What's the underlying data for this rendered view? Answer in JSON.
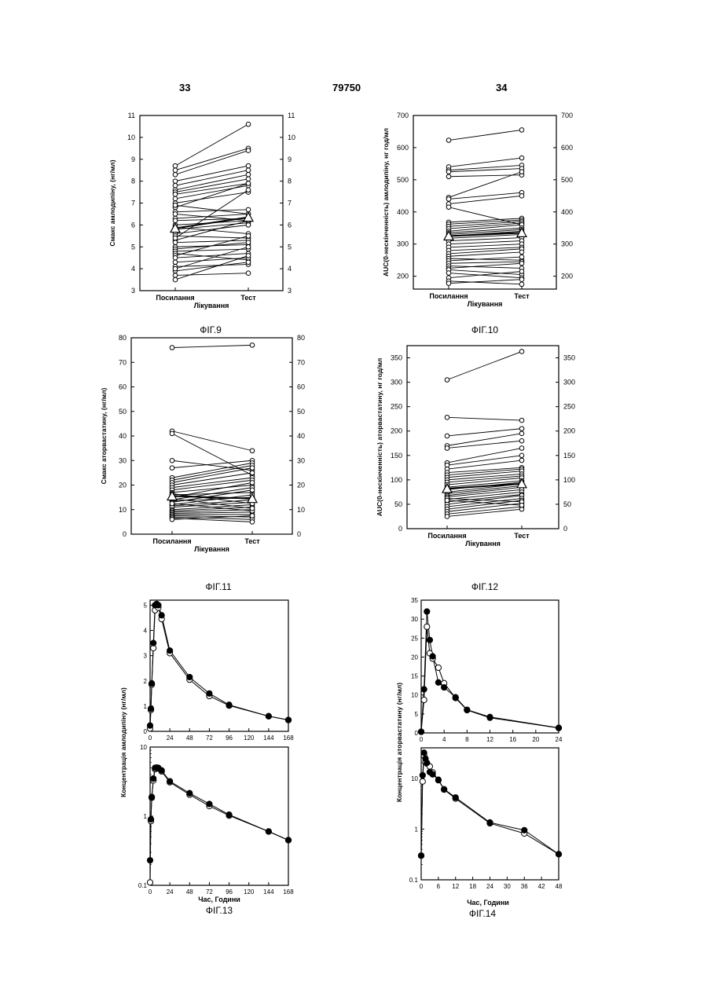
{
  "header": {
    "page_left": "33",
    "doc_number": "79750",
    "page_right": "34"
  },
  "figures": {
    "fig9": {
      "caption": "ФІГ.9",
      "chart_data": {
        "type": "line",
        "ylabel": "Смакс амлодипіну, (нг/мл)",
        "xlabel": "Лікування",
        "categories": [
          "Посилання",
          "Тест"
        ],
        "ylim": [
          3,
          11
        ],
        "yticks": [
          3,
          4,
          5,
          6,
          7,
          8,
          9,
          10,
          11
        ],
        "mean": [
          5.85,
          6.35
        ],
        "pairs": [
          [
            8.7,
            10.6
          ],
          [
            8.5,
            9.5
          ],
          [
            8.3,
            9.4
          ],
          [
            8.0,
            8.7
          ],
          [
            7.8,
            8.5
          ],
          [
            7.6,
            8.3
          ],
          [
            7.5,
            8.1
          ],
          [
            7.4,
            7.9
          ],
          [
            7.2,
            7.8
          ],
          [
            7.0,
            7.5
          ],
          [
            6.8,
            7.9
          ],
          [
            6.6,
            6.7
          ],
          [
            6.5,
            6.2
          ],
          [
            6.3,
            6.5
          ],
          [
            6.2,
            6.3
          ],
          [
            6.0,
            6.2
          ],
          [
            5.9,
            5.6
          ],
          [
            5.8,
            6.1
          ],
          [
            5.6,
            6.0
          ],
          [
            5.5,
            5.4
          ],
          [
            5.3,
            6.2
          ],
          [
            5.2,
            5.3
          ],
          [
            5.0,
            5.1
          ],
          [
            4.9,
            5.2
          ],
          [
            4.8,
            4.9
          ],
          [
            4.7,
            4.4
          ],
          [
            4.6,
            5.5
          ],
          [
            4.5,
            4.7
          ],
          [
            4.3,
            4.5
          ],
          [
            4.1,
            4.2
          ],
          [
            3.9,
            4.3
          ],
          [
            3.7,
            3.8
          ],
          [
            3.5,
            4.6
          ],
          [
            6.9,
            6.5
          ],
          [
            5.4,
            7.6
          ],
          [
            4.0,
            5.0
          ]
        ]
      }
    },
    "fig10": {
      "caption": "ФІГ.10",
      "chart_data": {
        "type": "line",
        "ylabel": "AUC(0-нескінченність) амлодипіну, нг год/мл",
        "xlabel": "Лікування",
        "categories": [
          "Посилання",
          "Тест"
        ],
        "ylim": [
          160,
          700
        ],
        "yticks": [
          200,
          300,
          400,
          500,
          600,
          700
        ],
        "mean": [
          325,
          335
        ],
        "pairs": [
          [
            623,
            655
          ],
          [
            540,
            568
          ],
          [
            530,
            545
          ],
          [
            525,
            535
          ],
          [
            510,
            515
          ],
          [
            445,
            525
          ],
          [
            440,
            460
          ],
          [
            425,
            450
          ],
          [
            415,
            360
          ],
          [
            368,
            380
          ],
          [
            362,
            375
          ],
          [
            355,
            370
          ],
          [
            348,
            365
          ],
          [
            340,
            360
          ],
          [
            335,
            350
          ],
          [
            330,
            345
          ],
          [
            325,
            340
          ],
          [
            318,
            330
          ],
          [
            310,
            320
          ],
          [
            300,
            310
          ],
          [
            290,
            300
          ],
          [
            280,
            290
          ],
          [
            270,
            285
          ],
          [
            262,
            275
          ],
          [
            255,
            250
          ],
          [
            248,
            260
          ],
          [
            240,
            245
          ],
          [
            232,
            225
          ],
          [
            225,
            240
          ],
          [
            220,
            205
          ],
          [
            210,
            195
          ],
          [
            195,
            215
          ],
          [
            185,
            175
          ],
          [
            178,
            190
          ]
        ]
      }
    },
    "fig11": {
      "caption": "ФІГ.11",
      "chart_data": {
        "type": "line",
        "ylabel": "Смакс аторвастатину, (нг/мл)",
        "xlabel": "Лікування",
        "categories": [
          "Посилання",
          "Тест"
        ],
        "ylim": [
          0,
          80
        ],
        "yticks": [
          0,
          10,
          20,
          30,
          40,
          50,
          60,
          70,
          80
        ],
        "mean": [
          15.5,
          14.5
        ],
        "pairs": [
          [
            76,
            77
          ],
          [
            42,
            34
          ],
          [
            41,
            24
          ],
          [
            30,
            26
          ],
          [
            27,
            30
          ],
          [
            23,
            29
          ],
          [
            22,
            28
          ],
          [
            21,
            27
          ],
          [
            20,
            25
          ],
          [
            19,
            23
          ],
          [
            18,
            22
          ],
          [
            17,
            20
          ],
          [
            16,
            17
          ],
          [
            15,
            21
          ],
          [
            14,
            19
          ],
          [
            13.5,
            15
          ],
          [
            13,
            18
          ],
          [
            12,
            16
          ],
          [
            11.5,
            14
          ],
          [
            11,
            13
          ],
          [
            10,
            12
          ],
          [
            9.5,
            11
          ],
          [
            9,
            10
          ],
          [
            8.5,
            9
          ],
          [
            8,
            8
          ],
          [
            7.5,
            7
          ],
          [
            7,
            6
          ],
          [
            6.5,
            5
          ],
          [
            6,
            7.5
          ],
          [
            12.5,
            9.5
          ],
          [
            14.5,
            10.5
          ],
          [
            16.5,
            12.5
          ]
        ]
      }
    },
    "fig12": {
      "caption": "ФІГ.12",
      "chart_data": {
        "type": "line",
        "ylabel": "AUC(0-нескінченність) аторвастатину, нг год/мл",
        "xlabel": "Лікування",
        "categories": [
          "Посилання",
          "Тест"
        ],
        "ylim": [
          0,
          375
        ],
        "yticks": [
          0,
          50,
          100,
          150,
          200,
          250,
          300,
          350
        ],
        "mean": [
          82,
          92
        ],
        "pairs": [
          [
            305,
            363
          ],
          [
            228,
            222
          ],
          [
            190,
            205
          ],
          [
            170,
            195
          ],
          [
            165,
            180
          ],
          [
            135,
            165
          ],
          [
            130,
            150
          ],
          [
            122,
            140
          ],
          [
            115,
            125
          ],
          [
            110,
            122
          ],
          [
            105,
            118
          ],
          [
            100,
            112
          ],
          [
            95,
            108
          ],
          [
            90,
            104
          ],
          [
            85,
            98
          ],
          [
            80,
            95
          ],
          [
            75,
            92
          ],
          [
            72,
            88
          ],
          [
            68,
            85
          ],
          [
            65,
            80
          ],
          [
            60,
            75
          ],
          [
            55,
            70
          ],
          [
            50,
            68
          ],
          [
            45,
            62
          ],
          [
            40,
            58
          ],
          [
            35,
            52
          ],
          [
            30,
            45
          ],
          [
            25,
            40
          ],
          [
            62,
            55
          ],
          [
            58,
            48
          ]
        ]
      }
    },
    "fig13": {
      "caption": "ФІГ.13",
      "chart_data": {
        "type": "line",
        "ylabel": "Концентрація амлодипіну (нг/мл)",
        "xlabel": "Час, Години",
        "xlim": [
          0,
          168
        ],
        "xticks": [
          0,
          24,
          48,
          72,
          96,
          120,
          144,
          168
        ],
        "linear_ylim": [
          0,
          5.2
        ],
        "linear_yticks": [
          0,
          1,
          2,
          3,
          4,
          5
        ],
        "log_ylim": [
          0.1,
          10
        ],
        "log_yticks": [
          0.1,
          1,
          10
        ],
        "series": [
          {
            "marker": "filled",
            "x": [
              0,
              1,
              2,
              4,
              6,
              8,
              10,
              14,
              24,
              48,
              72,
              96,
              144,
              168
            ],
            "y": [
              0.23,
              0.9,
              1.9,
              3.5,
              5.0,
              5.05,
              5.0,
              4.6,
              3.2,
              2.15,
              1.5,
              1.05,
              0.6,
              0.45
            ]
          },
          {
            "marker": "open",
            "x": [
              0,
              1,
              2,
              4,
              6,
              8,
              10,
              14,
              24,
              48,
              72,
              96,
              144,
              168
            ],
            "y": [
              0.11,
              0.85,
              1.85,
              3.3,
              4.8,
              5.0,
              4.9,
              4.45,
              3.1,
              2.05,
              1.4,
              1.02,
              0.6,
              0.45
            ]
          }
        ]
      }
    },
    "fig14": {
      "caption": "ФІГ.14",
      "chart_data": {
        "type": "line",
        "ylabel": "Концентрація аторвастатину (нг/мл)",
        "xlabel": "Час, Години",
        "linear_xlim": [
          0,
          24
        ],
        "linear_xticks": [
          0,
          4,
          8,
          12,
          16,
          20,
          24
        ],
        "linear_ylim": [
          0,
          35
        ],
        "linear_yticks": [
          0,
          5,
          10,
          15,
          20,
          25,
          30,
          35
        ],
        "log_xlim": [
          0,
          48
        ],
        "log_xticks": [
          0,
          6,
          12,
          18,
          24,
          30,
          36,
          42,
          48
        ],
        "log_ylim": [
          0.1,
          40
        ],
        "log_yticks": [
          0.1,
          1,
          10
        ],
        "series": [
          {
            "marker": "filled",
            "x": [
              0,
              0.5,
              1,
              1.5,
              2,
              3,
              4,
              6,
              8,
              12,
              24,
              36,
              48
            ],
            "y": [
              0.3,
              11.5,
              32,
              24.5,
              20.2,
              13.3,
              12.0,
              9.4,
              6.1,
              4.2,
              1.35,
              0.95,
              0.32
            ]
          },
          {
            "marker": "open",
            "x": [
              0,
              0.5,
              1,
              1.5,
              2,
              3,
              4,
              6,
              8,
              12,
              24,
              36,
              48
            ],
            "y": [
              0.3,
              8.7,
              28,
              21,
              19.6,
              17.2,
              13.1,
              9.2,
              6.0,
              4.0,
              1.3,
              0.82,
              0.32
            ]
          }
        ]
      }
    }
  }
}
